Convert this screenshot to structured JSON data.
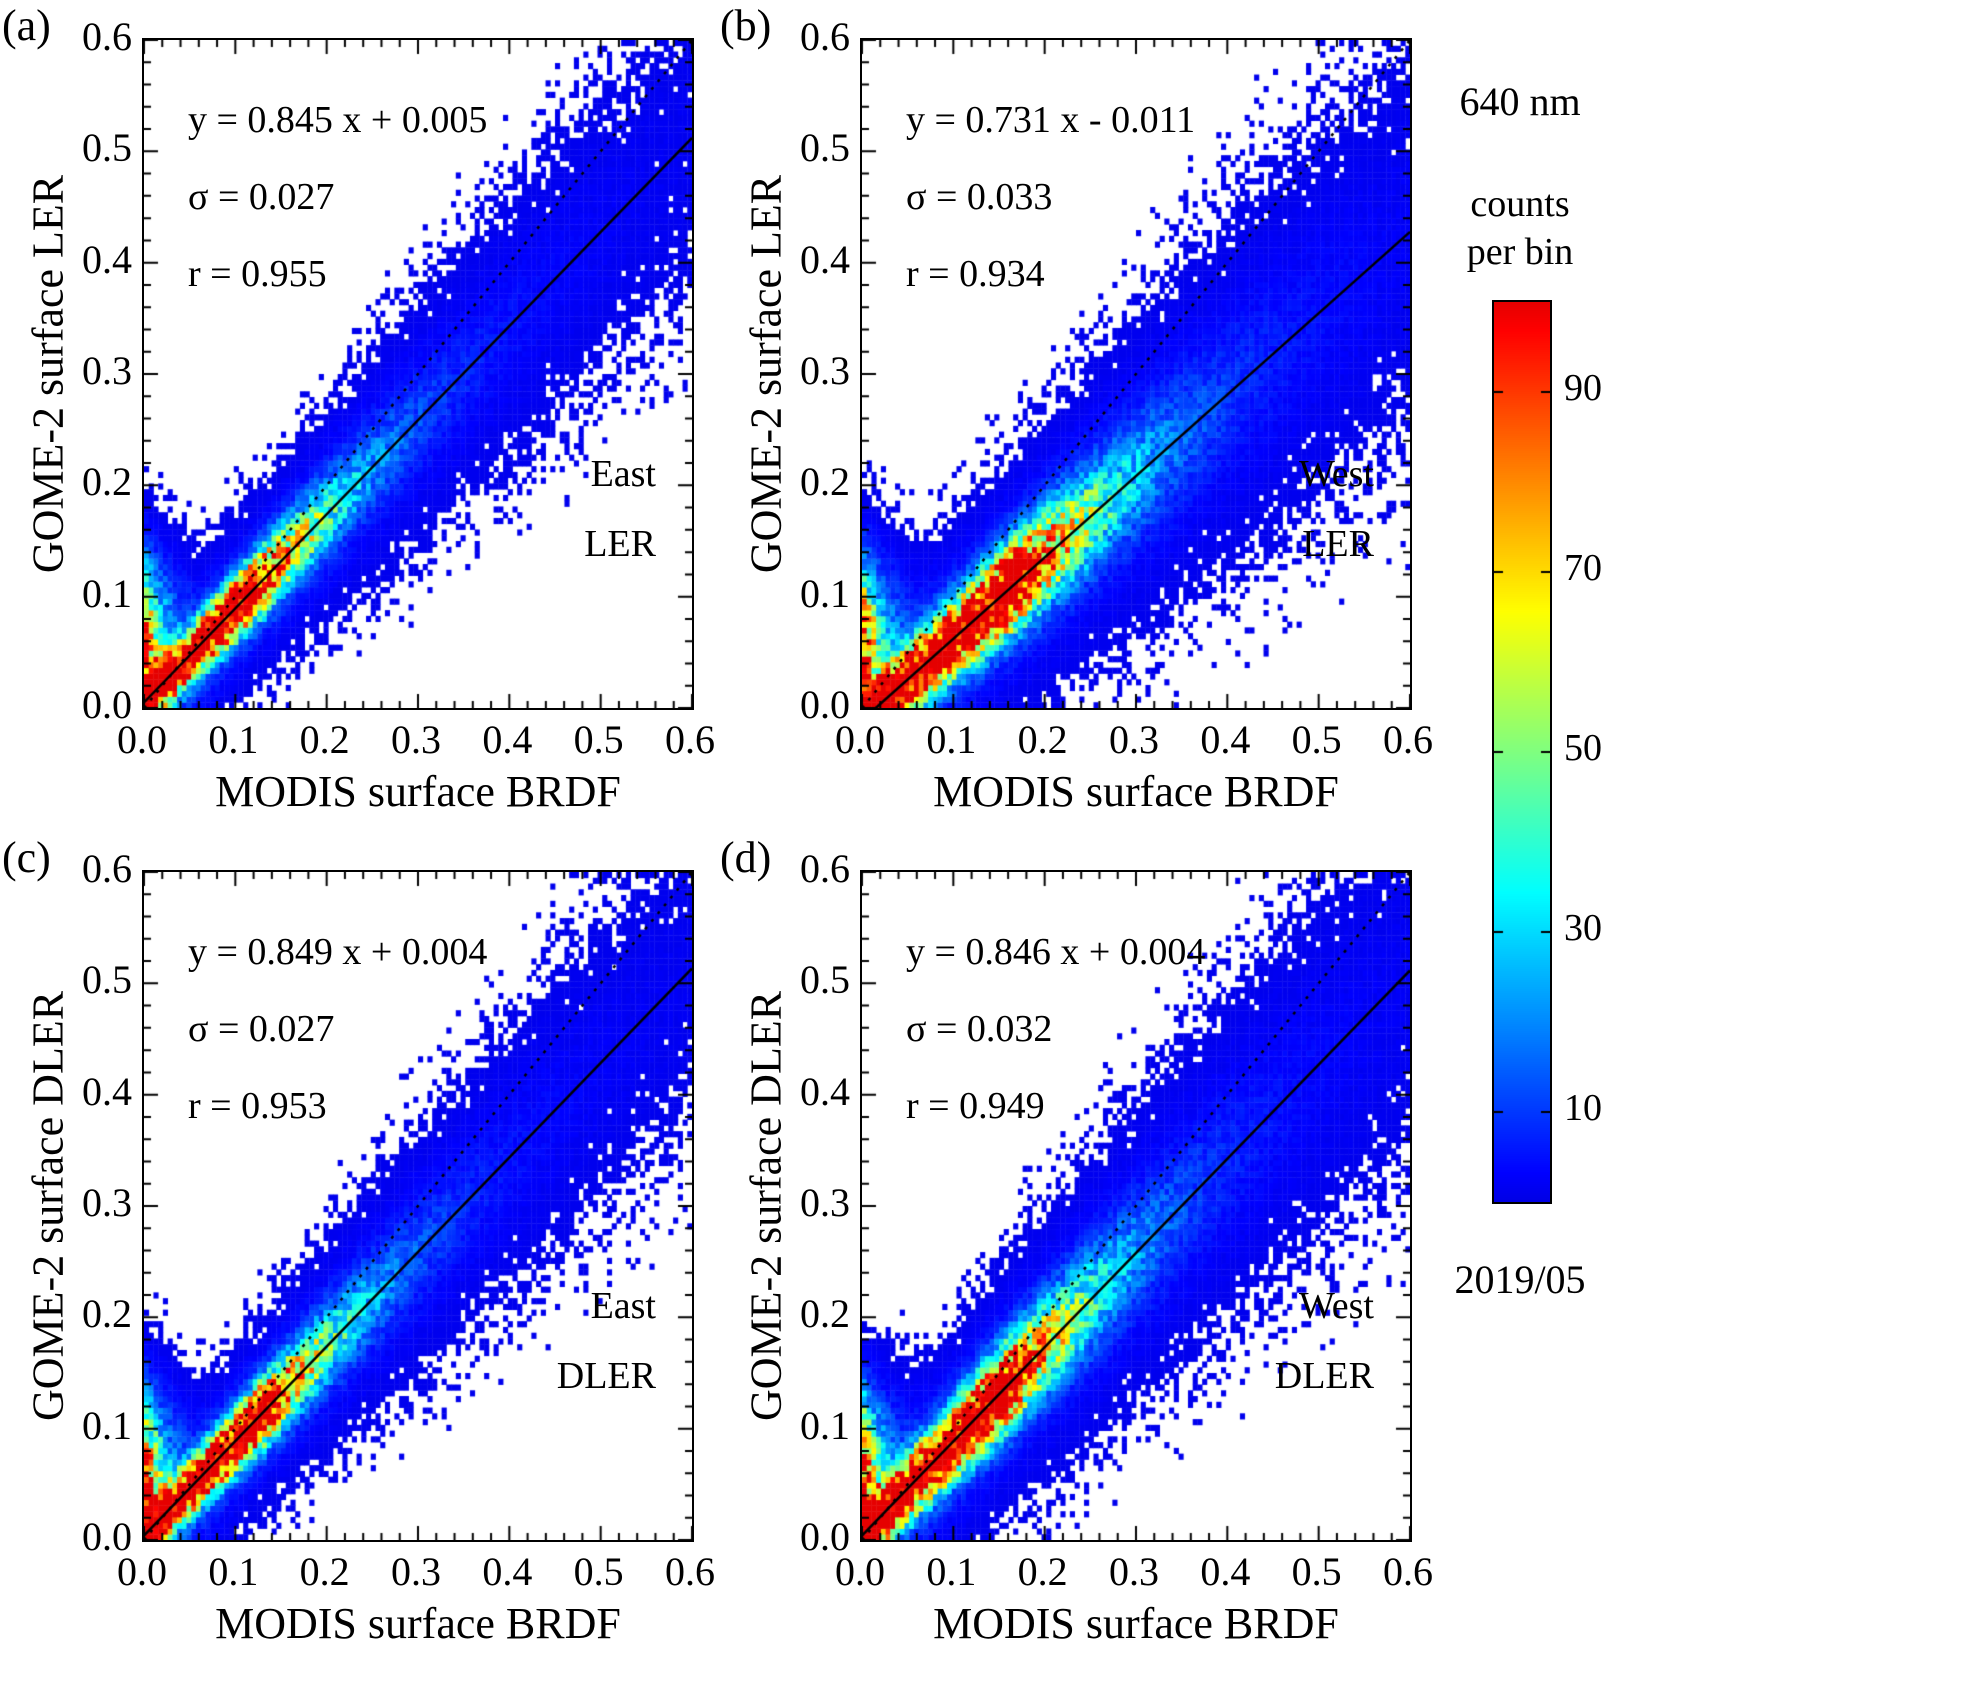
{
  "chart_data": {
    "type": "heatmap",
    "description": "Four 2D-histogram density scatter plots comparing GOME-2 surface (D)LER with MODIS surface BRDF, with dotted 1:1 reference line and solid linear fit line, colored by counts per bin (jet colormap).",
    "x": {
      "label": "MODIS surface BRDF",
      "min": 0,
      "max": 0.6,
      "ticks": [
        0,
        0.1,
        0.2,
        0.3,
        0.4,
        0.5,
        0.6
      ],
      "tick_labels": [
        "0.0",
        "0.1",
        "0.2",
        "0.3",
        "0.4",
        "0.5",
        "0.6"
      ]
    },
    "y": {
      "min": 0,
      "max": 0.6,
      "ticks": [
        0,
        0.1,
        0.2,
        0.3,
        0.4,
        0.5,
        0.6
      ],
      "tick_labels": [
        "0.0",
        "0.1",
        "0.2",
        "0.3",
        "0.4",
        "0.5",
        "0.6"
      ]
    },
    "reference_line": "dotted 1:1 diagonal",
    "panels": [
      {
        "panel_label": "(a)",
        "region": "East",
        "quantity": "LER",
        "xlabel": "MODIS surface BRDF",
        "ylabel": "GOME-2 surface LER",
        "equation_text": "y = 0.845 x + 0.005",
        "slope": 0.845,
        "intercept": 0.005,
        "sigma_text": "σ = 0.027",
        "sigma": 0.027,
        "r_text": "r = 0.955",
        "r": 0.955
      },
      {
        "panel_label": "(b)",
        "region": "West",
        "quantity": "LER",
        "xlabel": "MODIS surface BRDF",
        "ylabel": "GOME-2 surface LER",
        "equation_text": "y = 0.731 x - 0.011",
        "slope": 0.731,
        "intercept": -0.011,
        "sigma_text": "σ = 0.033",
        "sigma": 0.033,
        "r_text": "r = 0.934",
        "r": 0.934
      },
      {
        "panel_label": "(c)",
        "region": "East",
        "quantity": "DLER",
        "xlabel": "MODIS surface BRDF",
        "ylabel": "GOME-2 surface DLER",
        "equation_text": "y = 0.849 x + 0.004",
        "slope": 0.849,
        "intercept": 0.004,
        "sigma_text": "σ = 0.027",
        "sigma": 0.027,
        "r_text": "r = 0.953",
        "r": 0.953
      },
      {
        "panel_label": "(d)",
        "region": "West",
        "quantity": "DLER",
        "xlabel": "MODIS surface BRDF",
        "ylabel": "GOME-2 surface DLER",
        "equation_text": "y = 0.846 x + 0.004",
        "slope": 0.846,
        "intercept": 0.004,
        "sigma_text": "σ = 0.032",
        "sigma": 0.032,
        "r_text": "r = 0.949",
        "r": 0.949
      }
    ],
    "colorbar": {
      "wavelength": "640 nm",
      "label_line1": "counts",
      "label_line2": "per bin",
      "ticks": [
        10,
        30,
        50,
        70,
        90
      ],
      "min": 0,
      "max": 100,
      "date": "2019/05",
      "colormap": "jet",
      "color_low": "#0000e6",
      "color_high": "#e60000"
    }
  }
}
